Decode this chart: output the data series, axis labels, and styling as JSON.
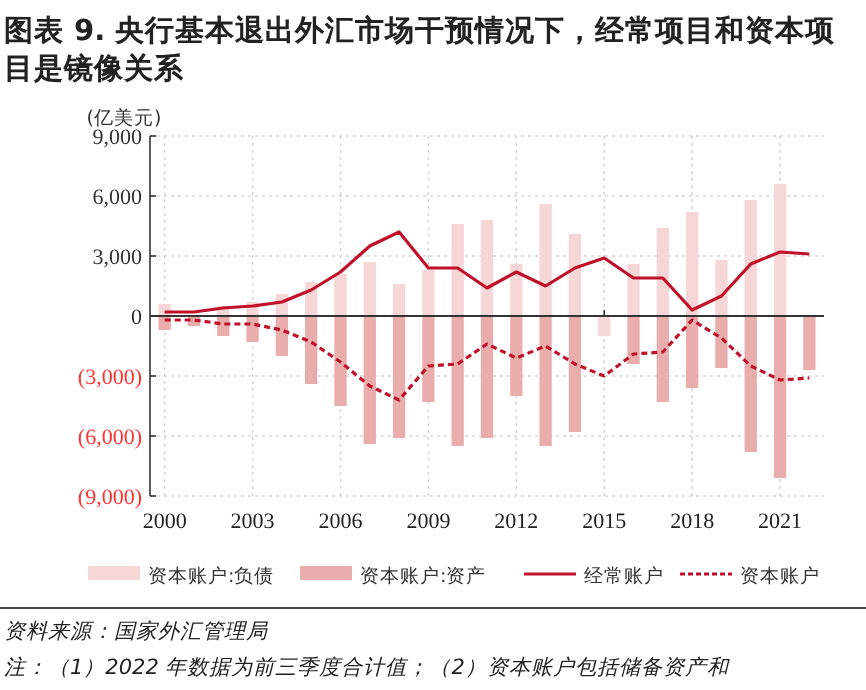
{
  "chart_data": {
    "type": "bar",
    "title": "图表 9. 央行基本退出外汇市场干预情况下，经常项目和资本项目是镜像关系",
    "ylabel": "(亿美元)",
    "stacked": true,
    "x": [
      2000,
      2001,
      2002,
      2003,
      2004,
      2005,
      2006,
      2007,
      2008,
      2009,
      2010,
      2011,
      2012,
      2013,
      2014,
      2015,
      2016,
      2017,
      2018,
      2019,
      2020,
      2021,
      2022
    ],
    "series": [
      {
        "name": "资本账户:负债",
        "color": "#f6d6d6",
        "values": [
          600,
          null,
          500,
          700,
          1100,
          1700,
          2100,
          2700,
          1600,
          2300,
          4600,
          4800,
          2600,
          5600,
          4100,
          -1000,
          2600,
          4400,
          5200,
          2800,
          5800,
          6600,
          null
        ]
      },
      {
        "name": "资本账户:资产",
        "color": "#e9aeac",
        "values": [
          -700,
          -500,
          -1000,
          -1300,
          -2000,
          -3400,
          -4500,
          -6400,
          -6100,
          -4300,
          -6500,
          -6100,
          -4000,
          -6500,
          -5800,
          null,
          -2400,
          -4300,
          -3600,
          -2600,
          -6800,
          -8100,
          -2700
        ]
      },
      {
        "name": "经常账户",
        "type": "line",
        "line_style": "solid",
        "color": "#c0102a",
        "values": [
          200,
          200,
          400,
          500,
          700,
          1300,
          2200,
          3500,
          4200,
          2400,
          2400,
          1400,
          2200,
          1500,
          2400,
          2900,
          1900,
          1900,
          300,
          1000,
          2600,
          3200,
          3100
        ]
      },
      {
        "name": "资本账户",
        "type": "line",
        "line_style": "dashed",
        "color": "#c0102a",
        "values": [
          -200,
          -200,
          -400,
          -400,
          -700,
          -1300,
          -2300,
          -3500,
          -4200,
          -2500,
          -2400,
          -1400,
          -2100,
          -1500,
          -2400,
          -3000,
          -1900,
          -1800,
          -200,
          -1100,
          -2500,
          -3200,
          -3100
        ]
      }
    ],
    "xlim": [
      1999.5,
      2022.5
    ],
    "xticks": [
      2000,
      2003,
      2006,
      2009,
      2012,
      2015,
      2018,
      2021
    ],
    "ylim": [
      -9000,
      9000
    ],
    "yticks": [
      {
        "value": 9000,
        "label": "9,000"
      },
      {
        "value": 6000,
        "label": "6,000"
      },
      {
        "value": 3000,
        "label": "3,000"
      },
      0,
      {
        "value": -3000,
        "label": "(3,000)"
      },
      {
        "value": -6000,
        "label": "(6,000)"
      },
      {
        "value": -9000,
        "label": "(9,000)"
      }
    ],
    "grid": true,
    "legend": "bottom",
    "annotations": [
      "资料来源：国家外汇管理局",
      "注：（1）2022 年数据为前三季度合计值；（2）资本账户包括储备资产和"
    ]
  }
}
